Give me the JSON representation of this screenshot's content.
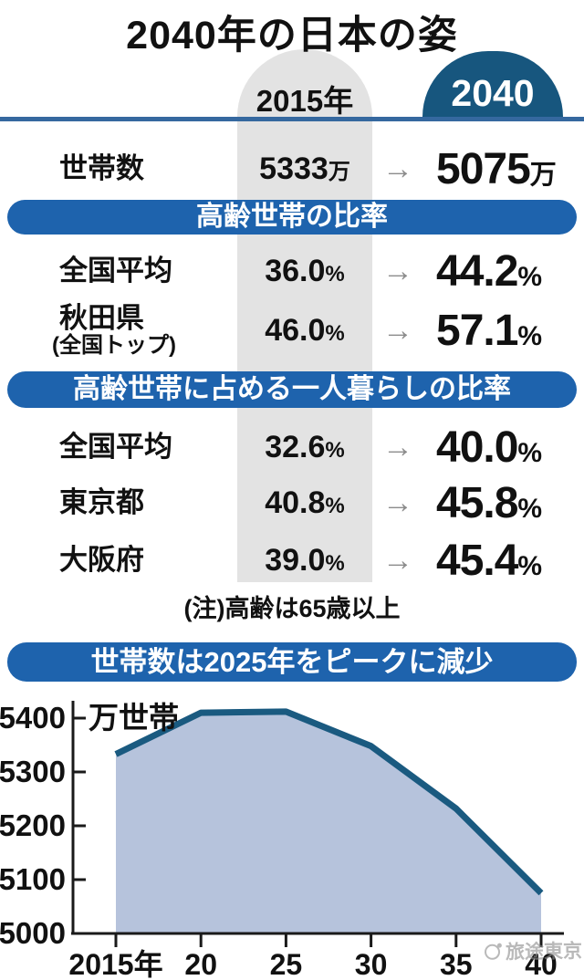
{
  "title": "2040年の日本の姿",
  "columns": {
    "y2015_label": "2015年",
    "y2040_label": "2040"
  },
  "glyphs": {
    "arrow": "→"
  },
  "units": {
    "man": "万",
    "percent": "%"
  },
  "households": {
    "label": "世帯数",
    "v2015": "5333",
    "v2040": "5075"
  },
  "sections": [
    {
      "header": "高齢世帯の比率",
      "rows": [
        {
          "label": "全国平均",
          "sub": "",
          "v2015": "36.0",
          "v2040": "44.2"
        },
        {
          "label": "秋田県",
          "sub": "(全国トップ)",
          "v2015": "46.0",
          "v2040": "57.1"
        }
      ]
    },
    {
      "header": "高齢世帯に占める一人暮らしの比率",
      "rows": [
        {
          "label": "全国平均",
          "sub": "",
          "v2015": "32.6",
          "v2040": "40.0"
        },
        {
          "label": "東京都",
          "sub": "",
          "v2015": "40.8",
          "v2040": "45.8"
        },
        {
          "label": "大阪府",
          "sub": "",
          "v2015": "39.0",
          "v2040": "45.4"
        }
      ]
    }
  ],
  "note": "(注)高齢は65歳以上",
  "chart_data": {
    "type": "area",
    "title": "世帯数は2025年をピークに減少",
    "ylabel": "万世帯",
    "x": [
      2015,
      2020,
      2025,
      2030,
      2035,
      2040
    ],
    "values": [
      5333,
      5410,
      5412,
      5348,
      5232,
      5075
    ],
    "ylim": [
      5000,
      5450
    ],
    "yticks": [
      5000,
      5100,
      5200,
      5300,
      5400
    ],
    "xtick_labels": [
      "2015年",
      "20",
      "25",
      "30",
      "35",
      "40"
    ],
    "grid": false,
    "legend": "none",
    "line_color": "#1a5a80",
    "fill_color": "#b6c3dc",
    "axis_color": "#1a1a1a"
  },
  "colors": {
    "section_bar_blue": "#1e63ad",
    "deep_blue": "#17567e",
    "rule_blue": "#35689f",
    "gray_column": "#e3e3e3",
    "arrow_gray": "#8c8c8c"
  },
  "watermark": {
    "text": "旅途東京"
  }
}
